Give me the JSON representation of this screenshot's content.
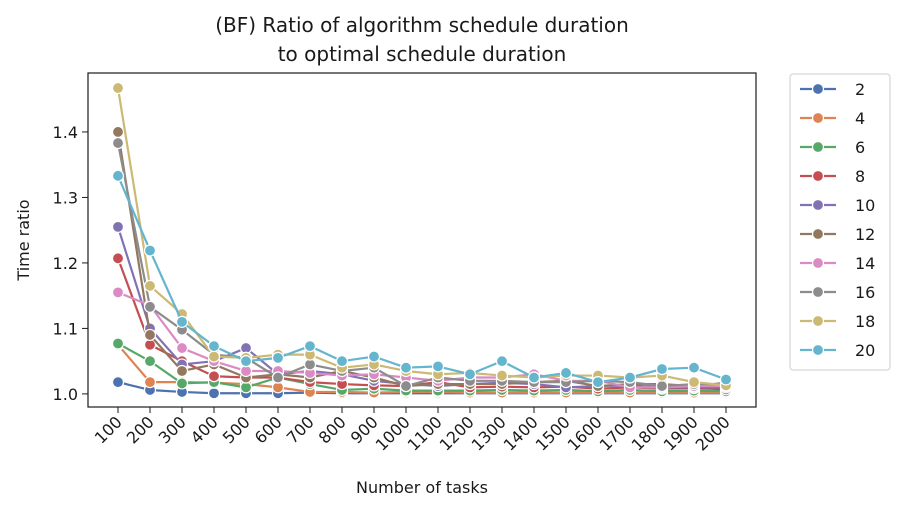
{
  "chart_data": {
    "type": "line",
    "title_lines": [
      "(BF) Ratio of algorithm schedule duration",
      "to optimal schedule duration"
    ],
    "xlabel": "Number of tasks",
    "ylabel": "Time ratio",
    "ylim": [
      0.98,
      1.49
    ],
    "yticks": [
      1.0,
      1.1,
      1.2,
      1.3,
      1.4
    ],
    "ytick_labels": [
      "1.0",
      "1.1",
      "1.2",
      "1.3",
      "1.4"
    ],
    "categories": [
      "100",
      "200",
      "300",
      "400",
      "500",
      "600",
      "700",
      "800",
      "900",
      "1000",
      "1100",
      "1200",
      "1300",
      "1400",
      "1500",
      "1600",
      "1700",
      "1800",
      "1900",
      "2000"
    ],
    "grid": false,
    "legend_position": "outside-right",
    "series": [
      {
        "name": "2",
        "color": "#4c72b0",
        "values": [
          1.018,
          1.006,
          1.003,
          1.001,
          1.001,
          1.001,
          1.002,
          1.001,
          1.001,
          1.001,
          1.001,
          1.001,
          1.001,
          1.001,
          1.001,
          1.001,
          1.001,
          1.001,
          1.001,
          1.001
        ]
      },
      {
        "name": "4",
        "color": "#dd8452",
        "values": [
          1.075,
          1.018,
          1.018,
          1.017,
          1.015,
          1.01,
          1.003,
          1.003,
          1.002,
          1.003,
          1.003,
          1.002,
          1.002,
          1.002,
          1.002,
          1.002,
          1.002,
          1.002,
          1.002,
          1.002
        ]
      },
      {
        "name": "6",
        "color": "#55a868",
        "values": [
          1.077,
          1.05,
          1.016,
          1.018,
          1.01,
          1.025,
          1.015,
          1.006,
          1.008,
          1.005,
          1.005,
          1.005,
          1.006,
          1.005,
          1.006,
          1.004,
          1.006,
          1.004,
          1.005,
          1.004
        ]
      },
      {
        "name": "8",
        "color": "#c44e52",
        "values": [
          1.207,
          1.075,
          1.05,
          1.027,
          1.025,
          1.025,
          1.018,
          1.015,
          1.013,
          1.012,
          1.018,
          1.01,
          1.011,
          1.01,
          1.011,
          1.008,
          1.01,
          1.008,
          1.009,
          1.007
        ]
      },
      {
        "name": "10",
        "color": "#8172b3",
        "values": [
          1.255,
          1.1,
          1.045,
          1.05,
          1.07,
          1.03,
          1.035,
          1.03,
          1.02,
          1.015,
          1.012,
          1.015,
          1.017,
          1.015,
          1.01,
          1.012,
          1.013,
          1.01,
          1.01,
          1.01
        ]
      },
      {
        "name": "12",
        "color": "#937860",
        "values": [
          1.4,
          1.09,
          1.035,
          1.045,
          1.025,
          1.03,
          1.025,
          1.035,
          1.025,
          1.012,
          1.015,
          1.015,
          1.015,
          1.018,
          1.02,
          1.012,
          1.015,
          1.015,
          1.012,
          1.017
        ]
      },
      {
        "name": "14",
        "color": "#da8bc3",
        "values": [
          1.155,
          1.135,
          1.07,
          1.05,
          1.035,
          1.035,
          1.032,
          1.028,
          1.03,
          1.025,
          1.02,
          1.025,
          1.025,
          1.03,
          1.02,
          1.02,
          1.01,
          1.01,
          1.012,
          1.012
        ]
      },
      {
        "name": "16",
        "color": "#8c8c8c",
        "values": [
          1.383,
          1.133,
          1.098,
          1.06,
          1.055,
          1.025,
          1.045,
          1.035,
          1.04,
          1.012,
          1.025,
          1.02,
          1.02,
          1.018,
          1.018,
          1.02,
          1.018,
          1.012,
          1.015,
          1.015
        ]
      },
      {
        "name": "18",
        "color": "#ccb974",
        "values": [
          1.467,
          1.165,
          1.122,
          1.057,
          1.055,
          1.06,
          1.06,
          1.04,
          1.045,
          1.035,
          1.03,
          1.032,
          1.028,
          1.025,
          1.028,
          1.028,
          1.025,
          1.028,
          1.018,
          1.013
        ]
      },
      {
        "name": "20",
        "color": "#64b5cd",
        "values": [
          1.333,
          1.219,
          1.11,
          1.073,
          1.05,
          1.055,
          1.073,
          1.05,
          1.057,
          1.04,
          1.042,
          1.03,
          1.05,
          1.025,
          1.032,
          1.018,
          1.025,
          1.038,
          1.04,
          1.022
        ]
      }
    ]
  }
}
